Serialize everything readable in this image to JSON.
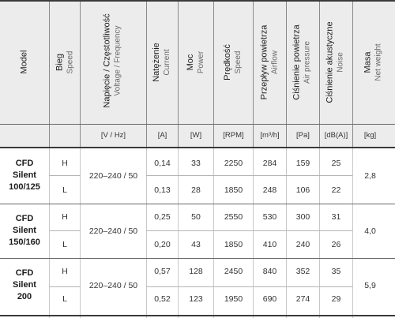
{
  "columns": [
    {
      "pl": "Model",
      "en": "",
      "unit": ""
    },
    {
      "pl": "Bieg",
      "en": "Speed",
      "unit": ""
    },
    {
      "pl": "Napięcie / Częstotliwość",
      "en": "Voltage / Frequency",
      "unit": "[V / Hz]"
    },
    {
      "pl": "Natężenie",
      "en": "Current",
      "unit": "[A]"
    },
    {
      "pl": "Moc",
      "en": "Power",
      "unit": "[W]"
    },
    {
      "pl": "Prędkość",
      "en": "Speed",
      "unit": "[RPM]"
    },
    {
      "pl": "Przepływ powietrza",
      "en": "Airflow",
      "unit": "[m³/h]"
    },
    {
      "pl": "Ciśnienie powietrza",
      "en": "Air pressure",
      "unit": "[Pa]"
    },
    {
      "pl": "Ciśnienie akustyczne",
      "en": "Noise",
      "unit": "[dB(A)]"
    },
    {
      "pl": "Masa",
      "en": "Net weight",
      "unit": "[kg]"
    }
  ],
  "models": [
    {
      "name": [
        "CFD",
        "Silent",
        "100/125"
      ],
      "voltage": "220–240 / 50",
      "weight": "2,8",
      "rows": [
        {
          "speed": "H",
          "current": "0,14",
          "power": "33",
          "rpm": "2250",
          "airflow": "284",
          "pressure": "159",
          "noise": "25"
        },
        {
          "speed": "L",
          "current": "0,13",
          "power": "28",
          "rpm": "1850",
          "airflow": "248",
          "pressure": "106",
          "noise": "22"
        }
      ]
    },
    {
      "name": [
        "CFD",
        "Silent",
        "150/160"
      ],
      "voltage": "220–240 / 50",
      "weight": "4,0",
      "rows": [
        {
          "speed": "H",
          "current": "0,25",
          "power": "50",
          "rpm": "2550",
          "airflow": "530",
          "pressure": "300",
          "noise": "31"
        },
        {
          "speed": "L",
          "current": "0,20",
          "power": "43",
          "rpm": "1850",
          "airflow": "410",
          "pressure": "240",
          "noise": "26"
        }
      ]
    },
    {
      "name": [
        "CFD",
        "Silent",
        "200"
      ],
      "voltage": "220–240 / 50",
      "weight": "5,9",
      "rows": [
        {
          "speed": "H",
          "current": "0,57",
          "power": "128",
          "rpm": "2450",
          "airflow": "840",
          "pressure": "352",
          "noise": "35"
        },
        {
          "speed": "L",
          "current": "0,52",
          "power": "123",
          "rpm": "1950",
          "airflow": "690",
          "pressure": "274",
          "noise": "29"
        }
      ]
    }
  ]
}
